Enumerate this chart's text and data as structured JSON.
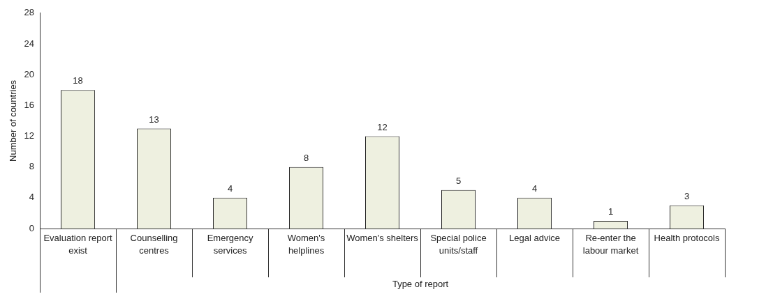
{
  "chart_data": {
    "type": "bar",
    "xlabel": "Type of report",
    "ylabel": "Number of countries",
    "categories": [
      "Evaluation report exist",
      "Counselling centres",
      "Emergency services",
      "Women's helplines",
      "Women's shelters",
      "Special police units/staff",
      "Legal advice",
      "Re-enter the labour market",
      "Health protocols"
    ],
    "values": [
      18,
      13,
      4,
      8,
      12,
      5,
      4,
      1,
      3
    ],
    "color": "#eef0e0",
    "ylim": [
      0,
      28
    ],
    "yticks": [
      0,
      4,
      8,
      12,
      16,
      20,
      24,
      28
    ],
    "grid": false,
    "legend": false,
    "data_labels": true
  }
}
